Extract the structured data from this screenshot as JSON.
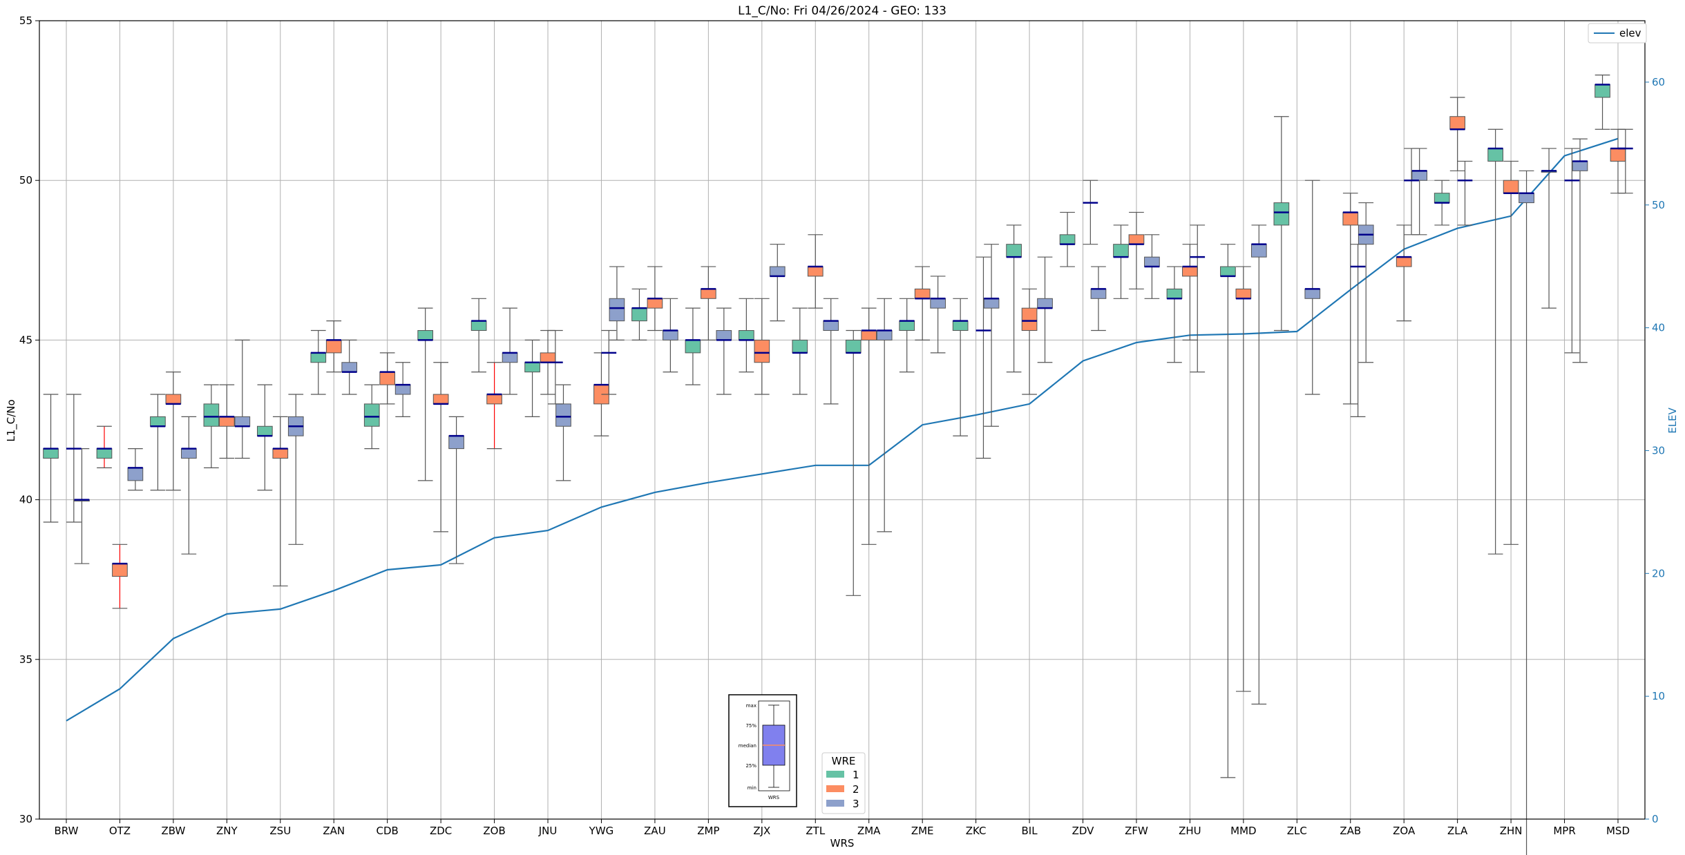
{
  "chart_data": {
    "type": "box",
    "title": "L1_C/No: Fri 04/26/2024 - GEO: 133",
    "xlabel": "WRS",
    "ylabel": "L1_C/No",
    "y2label": "ELEV",
    "ylim": [
      30,
      55
    ],
    "y2lim": [
      0,
      65
    ],
    "yticks": [
      30,
      35,
      40,
      45,
      50,
      55
    ],
    "y2ticks": [
      0,
      10,
      20,
      30,
      40,
      50,
      60
    ],
    "grid": true,
    "colors": {
      "wre1": "#66c2a5",
      "wre2": "#fc8d62",
      "wre3": "#8da0cb",
      "line": "#1f77b4",
      "median": "#00008b",
      "whisker_red": "#ff0000",
      "whisker": "#555555",
      "inset_box": "#8080ee"
    },
    "categories": [
      "BRW",
      "OTZ",
      "ZBW",
      "ZNY",
      "ZSU",
      "ZAN",
      "CDB",
      "ZDC",
      "ZOB",
      "JNU",
      "YWG",
      "ZAU",
      "ZMP",
      "ZJX",
      "ZTL",
      "ZMA",
      "ZME",
      "ZKC",
      "BIL",
      "ZDV",
      "ZFW",
      "ZHU",
      "MMD",
      "ZLC",
      "ZAB",
      "ZOA",
      "ZLA",
      "ZHN",
      "MPR",
      "MSD"
    ],
    "series": [
      {
        "name": "elev",
        "type": "line",
        "axis": "right",
        "values": [
          8,
          10.6,
          14.7,
          16.7,
          17.1,
          18.6,
          20.3,
          20.7,
          22.9,
          23.5,
          25.4,
          26.6,
          27.4,
          28.1,
          28.8,
          28.8,
          32.1,
          32.9,
          33.8,
          37.3,
          38.8,
          39.4,
          39.5,
          39.7,
          43.1,
          46.4,
          48.1,
          49.1,
          54,
          55.4
        ]
      },
      {
        "name": "1",
        "type": "box",
        "boxes": [
          [
            0,
            39.3,
            41.3,
            41.6,
            41.6,
            43.3
          ],
          [
            1,
            41.0,
            41.3,
            41.6,
            41.6,
            42.3
          ],
          [
            2,
            40.3,
            42.3,
            42.3,
            42.6,
            43.3
          ],
          [
            3,
            41.0,
            42.3,
            42.6,
            43.0,
            43.6
          ],
          [
            4,
            40.3,
            42.0,
            42.0,
            42.3,
            43.6
          ],
          [
            5,
            43.3,
            44.3,
            44.6,
            44.6,
            45.3
          ],
          [
            6,
            41.6,
            42.3,
            42.6,
            43.0,
            43.6
          ],
          [
            7,
            40.6,
            45.0,
            45.0,
            45.3,
            46.0
          ],
          [
            8,
            44.0,
            45.3,
            45.6,
            45.6,
            46.3
          ],
          [
            9,
            42.6,
            44.0,
            44.3,
            44.3,
            45.0
          ],
          [
            11,
            45.0,
            45.6,
            46.0,
            46.0,
            46.6
          ],
          [
            12,
            43.6,
            44.6,
            45.0,
            45.0,
            46.0
          ],
          [
            13,
            44.0,
            45.0,
            45.0,
            45.3,
            46.3
          ],
          [
            14,
            43.3,
            44.6,
            44.6,
            45.0,
            46.0
          ],
          [
            15,
            37.0,
            44.6,
            44.6,
            45.0,
            45.3
          ],
          [
            16,
            44.0,
            45.3,
            45.6,
            45.6,
            46.3
          ],
          [
            17,
            42.0,
            45.3,
            45.6,
            45.6,
            46.3
          ],
          [
            18,
            44.0,
            47.6,
            47.6,
            48.0,
            48.6
          ],
          [
            19,
            47.3,
            48.0,
            48.0,
            48.3,
            49.0
          ],
          [
            20,
            46.3,
            47.6,
            47.6,
            48.0,
            48.6
          ],
          [
            21,
            44.3,
            46.3,
            46.3,
            46.6,
            47.3
          ],
          [
            22,
            31.3,
            47.0,
            47.0,
            47.3,
            48.0
          ],
          [
            23,
            45.3,
            48.6,
            49.0,
            49.3,
            52.0
          ],
          [
            26,
            48.6,
            49.3,
            49.3,
            49.6,
            50.0
          ],
          [
            27,
            38.3,
            50.6,
            51.0,
            51.0,
            51.6
          ],
          [
            28,
            46.0,
            50.3,
            50.3,
            50.3,
            51.0
          ],
          [
            29,
            51.6,
            52.6,
            53.0,
            53.0,
            53.3
          ]
        ]
      },
      {
        "name": "2",
        "type": "box",
        "boxes": [
          [
            1,
            36.6,
            37.6,
            38.0,
            38.0,
            38.6
          ],
          [
            2,
            40.3,
            43.0,
            43.0,
            43.3,
            44.0
          ],
          [
            3,
            41.3,
            42.3,
            42.6,
            42.6,
            43.6
          ],
          [
            4,
            37.3,
            41.3,
            41.6,
            41.6,
            42.6
          ],
          [
            5,
            44.0,
            44.6,
            45.0,
            45.0,
            45.6
          ],
          [
            6,
            43.0,
            43.6,
            44.0,
            44.0,
            44.6
          ],
          [
            7,
            39.0,
            43.0,
            43.0,
            43.3,
            44.3
          ],
          [
            8,
            41.6,
            43.0,
            43.3,
            43.3,
            44.3
          ],
          [
            9,
            43.3,
            44.3,
            44.3,
            44.6,
            45.3
          ],
          [
            10,
            42.0,
            43.0,
            43.6,
            43.6,
            44.6
          ],
          [
            11,
            45.3,
            46.0,
            46.3,
            46.3,
            47.3
          ],
          [
            12,
            45.0,
            46.3,
            46.6,
            46.6,
            47.3
          ],
          [
            13,
            43.3,
            44.3,
            44.6,
            45.0,
            46.3
          ],
          [
            14,
            46.0,
            47.0,
            47.3,
            47.3,
            48.3
          ],
          [
            15,
            38.6,
            45.0,
            45.3,
            45.3,
            46.0
          ],
          [
            16,
            45.0,
            46.3,
            46.3,
            46.6,
            47.3
          ],
          [
            18,
            43.3,
            45.3,
            45.6,
            46.0,
            46.6
          ],
          [
            20,
            46.6,
            48.0,
            48.0,
            48.3,
            49.0
          ],
          [
            21,
            45.0,
            47.0,
            47.3,
            47.3,
            48.0
          ],
          [
            22,
            34.0,
            46.3,
            46.3,
            46.6,
            47.3
          ],
          [
            24,
            43.0,
            48.6,
            49.0,
            49.0,
            49.6
          ],
          [
            25,
            45.6,
            47.3,
            47.6,
            47.6,
            48.6
          ],
          [
            26,
            50.3,
            51.6,
            51.6,
            52.0,
            52.6
          ],
          [
            27,
            38.6,
            49.6,
            49.6,
            50.0,
            50.6
          ],
          [
            29,
            49.6,
            50.6,
            51.0,
            51.0,
            51.6
          ]
        ]
      },
      {
        "name": "3",
        "type": "box",
        "boxes": [
          [
            0,
            38.0,
            40.0,
            40.0,
            40.0,
            41.6
          ],
          [
            1,
            40.3,
            40.6,
            41.0,
            41.0,
            41.6
          ],
          [
            2,
            38.3,
            41.3,
            41.6,
            41.6,
            42.6
          ],
          [
            3,
            41.3,
            42.3,
            42.3,
            42.6,
            45.0
          ],
          [
            4,
            38.6,
            42.0,
            42.3,
            42.6,
            43.3
          ],
          [
            5,
            43.3,
            44.0,
            44.0,
            44.3,
            45.0
          ],
          [
            6,
            42.6,
            43.3,
            43.6,
            43.6,
            44.3
          ],
          [
            7,
            38.0,
            41.6,
            42.0,
            42.0,
            42.6
          ],
          [
            8,
            43.3,
            44.3,
            44.6,
            44.6,
            46.0
          ],
          [
            9,
            40.6,
            42.3,
            42.6,
            43.0,
            43.6
          ],
          [
            10,
            45.0,
            45.6,
            46.0,
            46.3,
            47.3
          ],
          [
            11,
            44.0,
            45.0,
            45.3,
            45.3,
            46.3
          ],
          [
            12,
            43.3,
            45.0,
            45.0,
            45.3,
            46.0
          ],
          [
            13,
            45.6,
            47.0,
            47.0,
            47.3,
            48.0
          ],
          [
            14,
            43.0,
            45.3,
            45.6,
            45.6,
            46.3
          ],
          [
            15,
            39.0,
            45.0,
            45.3,
            45.3,
            46.3
          ],
          [
            16,
            44.6,
            46.0,
            46.3,
            46.3,
            47.0
          ],
          [
            17,
            42.3,
            46.0,
            46.3,
            46.3,
            48.0
          ],
          [
            18,
            44.3,
            46.0,
            46.0,
            46.3,
            47.6
          ],
          [
            19,
            45.3,
            46.3,
            46.6,
            46.6,
            47.3
          ],
          [
            20,
            46.3,
            47.3,
            47.3,
            47.6,
            48.3
          ],
          [
            22,
            33.6,
            47.6,
            48.0,
            48.0,
            48.6
          ],
          [
            23,
            43.3,
            46.3,
            46.6,
            46.6,
            50.0
          ],
          [
            24,
            44.3,
            48.0,
            48.3,
            48.6,
            49.3
          ],
          [
            25,
            48.3,
            50.0,
            50.3,
            50.3,
            51.0
          ],
          [
            27,
            28.0,
            49.3,
            49.6,
            49.6,
            50.3
          ],
          [
            28,
            44.3,
            50.3,
            50.6,
            50.6,
            51.3
          ]
        ]
      },
      {
        "name": "single",
        "type": "median-only",
        "lines": [
          [
            0,
            41.6,
            39.3,
            43.3
          ],
          [
            9,
            44.3,
            43.0,
            45.3
          ],
          [
            10,
            44.6,
            43.3,
            45.3
          ],
          [
            17,
            45.3,
            41.3,
            47.6
          ],
          [
            19,
            49.3,
            48.0,
            50.0
          ],
          [
            21,
            47.6,
            44.0,
            48.6
          ],
          [
            24,
            47.3,
            42.6,
            48.0
          ],
          [
            25,
            50.0,
            48.3,
            51.0
          ],
          [
            26,
            50.0,
            48.6,
            50.6
          ],
          [
            28,
            50.0,
            44.6,
            51.0
          ],
          [
            29,
            51.0,
            49.6,
            51.6
          ]
        ]
      },
      {
        "name": "red-whiskers",
        "type": "whisker-color",
        "items": [
          [
            1,
            2
          ],
          [
            8,
            2
          ],
          [
            1,
            1
          ]
        ]
      }
    ],
    "legend_elev": {
      "label": "elev",
      "placement": "top-right"
    },
    "legend_wre": {
      "title": "WRE",
      "entries": [
        "1",
        "2",
        "3"
      ],
      "placement": "lower-center"
    },
    "inset": {
      "labels": [
        "max",
        "75%",
        "median",
        "25%",
        "min"
      ],
      "xlabel": "WRS"
    }
  }
}
